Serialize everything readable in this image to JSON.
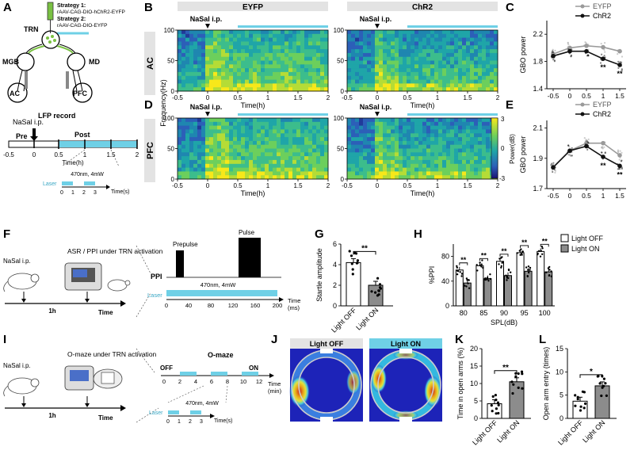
{
  "panel_letters": [
    "A",
    "B",
    "C",
    "D",
    "E",
    "F",
    "G",
    "H",
    "I",
    "J",
    "K",
    "L"
  ],
  "panel_a": {
    "strategy1_label": "Strategy 1:",
    "strategy1_virus": "rAAV-CAG-DIO-hChR2-EYFP",
    "strategy2_label": "Strategy 2:",
    "strategy2_virus": "rAAV-CAG-DIO-EYFP",
    "regions": [
      "TRN",
      "MGB",
      "MD",
      "AC",
      "PFC"
    ],
    "lfp_record": "LFP record",
    "nasal_ip": "NaSal i.p.",
    "pre": "Pre",
    "post": "Post",
    "ticks": [
      "-0.5",
      "0",
      "0.5",
      "1",
      "1.5",
      "2"
    ],
    "xlabel": "Time(h)",
    "laser_label": "Laser",
    "laser_params": "470nm, 4mW",
    "laser_ticks": [
      "0",
      "1",
      "2",
      "3"
    ],
    "laser_xlabel": "Time(s)"
  },
  "spectrograms": {
    "col_titles": [
      "EYFP",
      "ChR2"
    ],
    "row_labels": [
      "AC",
      "PFC"
    ],
    "ylabel": "Frequency(Hz)",
    "yticks": [
      "0",
      "50",
      "100"
    ],
    "xticks": [
      "-0.5",
      "0",
      "0.5",
      "1",
      "1.5",
      "2"
    ],
    "xlabel": "Time(h)",
    "nasal_ip": "NaSal i.p.",
    "colorbar_label": "Power(dB)",
    "colorbar_ticks": [
      "3",
      "0",
      "-3"
    ]
  },
  "panel_f": {
    "nasal_ip": "NaSal i.p.",
    "task": "ASR / PPI under TRN activation",
    "time_1h": "1h",
    "time_label": "Time",
    "ppi_label": "PPI",
    "prepulse": "Prepulse",
    "pulse": "Pulse",
    "laser_params": "470nm, 4mW",
    "laser_label": "Laser",
    "xticks": [
      "0",
      "40",
      "80",
      "120",
      "160",
      "200"
    ],
    "xlabel": "Time",
    "xunit": "(ms)"
  },
  "panel_i": {
    "nasal_ip": "NaSal i.p.",
    "task": "O-maze under TRN activation",
    "time_1h": "1h",
    "time_label": "Time",
    "omaze_title": "O-maze",
    "off_label": "OFF",
    "on_label": "ON",
    "xticks": [
      "0",
      "2",
      "4",
      "6",
      "8",
      "10",
      "12"
    ],
    "xlabel": "Time",
    "xunit": "(min)",
    "laser_label": "Laser",
    "laser_params": "470nm, 4mW",
    "laser_ticks": [
      "0",
      "1",
      "2",
      "3"
    ],
    "laser_xlabel": "Time(s)"
  },
  "panel_j": {
    "titles": [
      "Light OFF",
      "Light ON"
    ]
  },
  "legend_h": [
    "Light OFF",
    "Light ON"
  ],
  "colors": {
    "eyfp": "#9a9a9a",
    "chr2": "#111111",
    "light_on": "#8c8c8c",
    "cyan": "#6fd0e6",
    "header_gray": "#e3e3e3"
  },
  "chart_data": [
    {
      "panel": "C",
      "type": "line",
      "ylabel": "GBO power",
      "x": [
        -0.5,
        0,
        0.5,
        1,
        1.5
      ],
      "xticks": [
        "-0.5",
        "0",
        "0.5",
        "1",
        "1.5"
      ],
      "ylim": [
        1.4,
        2.4
      ],
      "yticks": [
        "1.4",
        "1.8",
        "2.2"
      ],
      "series": [
        {
          "name": "EYFP",
          "values": [
            1.91,
            2.0,
            2.03,
            2.01,
            1.95
          ]
        },
        {
          "name": "ChR2",
          "values": [
            1.88,
            1.95,
            1.95,
            1.84,
            1.75
          ]
        }
      ],
      "significance": [
        {
          "x": 1,
          "label": "**"
        },
        {
          "x": 1.5,
          "label": "**"
        }
      ]
    },
    {
      "panel": "E",
      "type": "line",
      "ylabel": "GBO power",
      "x": [
        -0.5,
        0,
        0.5,
        1,
        1.5
      ],
      "xticks": [
        "-0.5",
        "0",
        "0.5",
        "1",
        "1.5"
      ],
      "ylim": [
        1.7,
        2.15
      ],
      "yticks": [
        "1.7",
        "1.9",
        "2.1"
      ],
      "series": [
        {
          "name": "EYFP",
          "values": [
            1.84,
            1.95,
            2.0,
            2.0,
            1.92
          ]
        },
        {
          "name": "ChR2",
          "values": [
            1.84,
            1.95,
            1.98,
            1.91,
            1.85
          ]
        }
      ],
      "significance": [
        {
          "x": 1,
          "label": "**"
        },
        {
          "x": 1.5,
          "label": "**"
        }
      ]
    },
    {
      "panel": "G",
      "type": "bar",
      "ylabel": "Startle amplitude",
      "categories": [
        "Light OFF",
        "Light ON"
      ],
      "values": [
        4.2,
        2.0
      ],
      "ylim": [
        0,
        6
      ],
      "yticks": [
        "0",
        "2",
        "4",
        "6"
      ],
      "significance": "**"
    },
    {
      "panel": "H",
      "type": "bar",
      "ylabel": "%PPI",
      "xlabel": "SPL(dB)",
      "categories": [
        "80",
        "85",
        "90",
        "95",
        "100"
      ],
      "series": [
        {
          "name": "Light OFF",
          "values": [
            58,
            65,
            72,
            86,
            88
          ]
        },
        {
          "name": "Light ON",
          "values": [
            37,
            44,
            49,
            56,
            55
          ]
        }
      ],
      "ylim": [
        0,
        100
      ],
      "yticks": [
        "0",
        "40",
        "80"
      ],
      "significance": [
        "**",
        "**",
        "**",
        "**",
        "**"
      ]
    },
    {
      "panel": "K",
      "type": "bar",
      "ylabel": "Time in open arms (%)",
      "categories": [
        "Light OFF",
        "Light ON"
      ],
      "values": [
        4.2,
        10.5
      ],
      "ylim": [
        0,
        20
      ],
      "yticks": [
        "0",
        "5",
        "10",
        "15",
        "20"
      ],
      "significance": "**"
    },
    {
      "panel": "L",
      "type": "bar",
      "ylabel": "Open arm entry (times)",
      "categories": [
        "Light OFF",
        "Light ON"
      ],
      "values": [
        3.7,
        7.0
      ],
      "ylim": [
        0,
        15
      ],
      "yticks": [
        "0",
        "5",
        "10",
        "15"
      ],
      "significance": "*"
    }
  ]
}
